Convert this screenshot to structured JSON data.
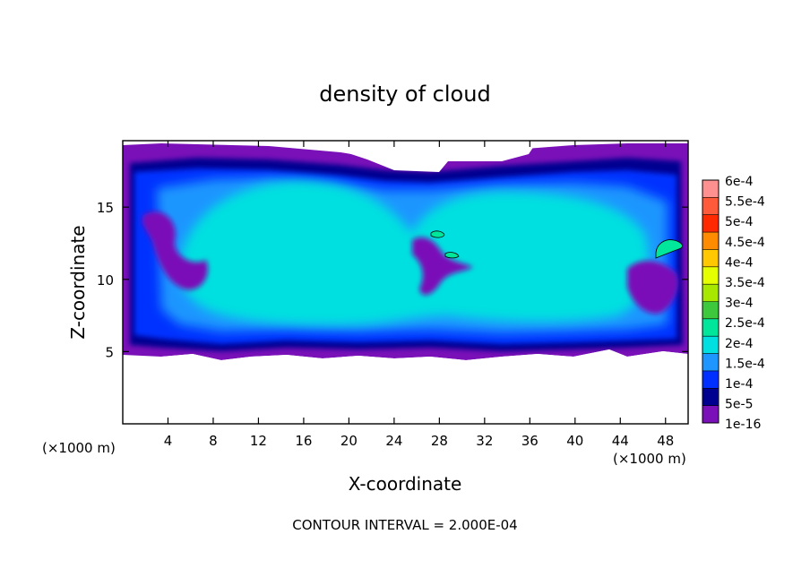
{
  "chart_data": {
    "type": "heatmap",
    "title": "density of cloud",
    "xlabel": "X-coordinate",
    "ylabel": "Z-coordinate",
    "x_unit_left": "(×1000 m)",
    "x_unit_right": "(×1000 m)",
    "xlim": [
      0,
      50
    ],
    "ylim": [
      0,
      19.6
    ],
    "x_ticks": [
      4,
      8,
      12,
      16,
      20,
      24,
      28,
      32,
      36,
      40,
      44,
      48
    ],
    "y_ticks": [
      5,
      10,
      15
    ],
    "footer": "CONTOUR INTERVAL = 2.000E-04",
    "colorbar": {
      "labels": [
        "6e-4",
        "5.5e-4",
        "5e-4",
        "4.5e-4",
        "4e-4",
        "3.5e-4",
        "3e-4",
        "2.5e-4",
        "2e-4",
        "1.5e-4",
        "1e-4",
        "5e-5",
        "1e-16"
      ],
      "colors": [
        "#ff9090",
        "#ff5a3a",
        "#ff2a00",
        "#ff8c00",
        "#ffc800",
        "#e6ff00",
        "#a8e800",
        "#3ec83e",
        "#00e69a",
        "#00e0e0",
        "#1e96ff",
        "#0030ff",
        "#000090",
        "#7a10b8"
      ]
    },
    "field": {
      "cloud_base_z": 5.0,
      "cloud_top_z": 19.0,
      "core_center_x": 19.5,
      "core_center_z": 12.0,
      "core_level": "2e-4",
      "max_contour_points": [
        {
          "x": 27.2,
          "z": 13.3
        },
        {
          "x": 29.0,
          "z": 11.9
        },
        {
          "x": 47.8,
          "z": 12.4
        }
      ]
    }
  }
}
